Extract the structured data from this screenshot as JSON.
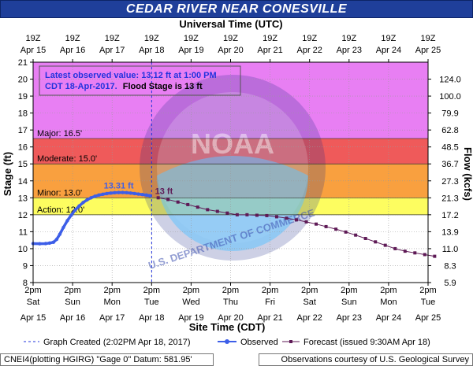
{
  "title": "CEDAR RIVER NEAR CONESVILLE",
  "top_axis_title": "Universal Time (UTC)",
  "bottom_axis_title": "Site Time (CDT)",
  "left_axis_title": "Stage (ft)",
  "right_axis_title": "Flow (kcfs)",
  "info_box": {
    "line1": "Latest observed value: 13.12 ft at 1:00 PM",
    "line2_prefix": "CDT 18-Apr-2017.",
    "line2_suffix": "Flood Stage is 13 ft"
  },
  "legend": {
    "graph_created": "Graph Created (2:02PM Apr 18, 2017)",
    "observed": "Observed",
    "forecast": "Forecast (issued 9:30AM Apr 18)"
  },
  "footer": {
    "left": "CNEI4(plotting HGIRG) \"Gage 0\" Datum: 581.95'",
    "right": "Observations courtesy of U.S. Geological Survey"
  },
  "colors": {
    "major": "#e87ff3",
    "major_minor_band": "#ef5a5a",
    "moderate": "#f9a03f",
    "minor": "#fdfd60",
    "action_below": "#ffffff",
    "observed": "#3d5ee8",
    "forecast": "#5e1a56",
    "title_bar": "#1f3f9a"
  },
  "chart_data": {
    "type": "line",
    "title": "CEDAR RIVER NEAR CONESVILLE",
    "xlabel": "Site Time (CDT)",
    "ylabel": "Stage (ft)",
    "y2label": "Flow (kcfs)",
    "ylim": [
      8,
      21
    ],
    "xlim_days": [
      15.5833,
      25.5833
    ],
    "y_ticks": [
      8,
      9,
      10,
      11,
      12,
      13,
      14,
      15,
      16,
      17,
      18,
      19,
      20,
      21
    ],
    "flow_ticks": [
      {
        "stage": 9,
        "label": "8.3"
      },
      {
        "stage": 10,
        "label": "11.0"
      },
      {
        "stage": 11,
        "label": "13.9"
      },
      {
        "stage": 12,
        "label": "17.2"
      },
      {
        "stage": 13,
        "label": "21.3"
      },
      {
        "stage": 14,
        "label": "27.3"
      },
      {
        "stage": 15,
        "label": "36.7"
      },
      {
        "stage": 16,
        "label": "48.5"
      },
      {
        "stage": 17,
        "label": "62.8"
      },
      {
        "stage": 18,
        "label": "79.9"
      },
      {
        "stage": 19,
        "label": "100.0"
      },
      {
        "stage": 20,
        "label": "124.0"
      },
      {
        "stage": 8,
        "label": "5.9"
      }
    ],
    "bottom_ticks": [
      {
        "time": "2pm",
        "day": "Sat",
        "date": "Apr 15"
      },
      {
        "time": "2pm",
        "day": "Sun",
        "date": "Apr 16"
      },
      {
        "time": "2pm",
        "day": "Mon",
        "date": "Apr 17"
      },
      {
        "time": "2pm",
        "day": "Tue",
        "date": "Apr 18"
      },
      {
        "time": "2pm",
        "day": "Wed",
        "date": "Apr 19"
      },
      {
        "time": "2pm",
        "day": "Thu",
        "date": "Apr 20"
      },
      {
        "time": "2pm",
        "day": "Fri",
        "date": "Apr 21"
      },
      {
        "time": "2pm",
        "day": "Sat",
        "date": "Apr 22"
      },
      {
        "time": "2pm",
        "day": "Sun",
        "date": "Apr 23"
      },
      {
        "time": "2pm",
        "day": "Mon",
        "date": "Apr 24"
      },
      {
        "time": "2pm",
        "day": "Tue",
        "date": "Apr 25"
      }
    ],
    "top_ticks": [
      {
        "time": "19Z",
        "date": "Apr 15"
      },
      {
        "time": "19Z",
        "date": "Apr 16"
      },
      {
        "time": "19Z",
        "date": "Apr 17"
      },
      {
        "time": "19Z",
        "date": "Apr 18"
      },
      {
        "time": "19Z",
        "date": "Apr 19"
      },
      {
        "time": "19Z",
        "date": "Apr 20"
      },
      {
        "time": "19Z",
        "date": "Apr 21"
      },
      {
        "time": "19Z",
        "date": "Apr 22"
      },
      {
        "time": "19Z",
        "date": "Apr 23"
      },
      {
        "time": "19Z",
        "date": "Apr 24"
      },
      {
        "time": "19Z",
        "date": "Apr 25"
      }
    ],
    "flood_categories": [
      {
        "name": "Major",
        "label": "Major: 16.5'",
        "stage": 16.5
      },
      {
        "name": "Moderate",
        "label": "Moderate: 15.0'",
        "stage": 15.0
      },
      {
        "name": "Minor",
        "label": "Minor: 13.0'",
        "stage": 13.0
      },
      {
        "name": "Action",
        "label": "Action: 12.0'",
        "stage": 12.0
      }
    ],
    "graph_created_day": 18.5847,
    "observed_peak_label": "13.31 ft",
    "forecast_start_label": "13 ft",
    "series": [
      {
        "name": "Observed",
        "points": [
          [
            15.5833,
            10.3
          ],
          [
            15.75,
            10.29
          ],
          [
            15.9,
            10.3
          ],
          [
            16.0,
            10.33
          ],
          [
            16.1,
            10.38
          ],
          [
            16.18,
            10.55
          ],
          [
            16.26,
            10.85
          ],
          [
            16.35,
            11.25
          ],
          [
            16.45,
            11.65
          ],
          [
            16.55,
            11.98
          ],
          [
            16.65,
            12.28
          ],
          [
            16.75,
            12.52
          ],
          [
            16.85,
            12.72
          ],
          [
            16.95,
            12.88
          ],
          [
            17.05,
            13.0
          ],
          [
            17.15,
            13.09
          ],
          [
            17.25,
            13.16
          ],
          [
            17.35,
            13.21
          ],
          [
            17.45,
            13.25
          ],
          [
            17.55,
            13.28
          ],
          [
            17.65,
            13.3
          ],
          [
            17.75,
            13.31
          ],
          [
            17.85,
            13.31
          ],
          [
            17.95,
            13.3
          ],
          [
            18.05,
            13.28
          ],
          [
            18.15,
            13.25
          ],
          [
            18.25,
            13.22
          ],
          [
            18.35,
            13.19
          ],
          [
            18.45,
            13.16
          ],
          [
            18.54,
            13.12
          ]
        ]
      },
      {
        "name": "Forecast (issued 9:30AM Apr 18)",
        "points": [
          [
            18.75,
            13.0
          ],
          [
            19.0,
            12.9
          ],
          [
            19.25,
            12.75
          ],
          [
            19.5,
            12.6
          ],
          [
            19.75,
            12.45
          ],
          [
            20.0,
            12.3
          ],
          [
            20.25,
            12.2
          ],
          [
            20.5,
            12.1
          ],
          [
            20.75,
            12.0
          ],
          [
            21.0,
            12.0
          ],
          [
            21.25,
            11.97
          ],
          [
            21.5,
            11.95
          ],
          [
            21.75,
            11.88
          ],
          [
            22.0,
            11.8
          ],
          [
            22.25,
            11.7
          ],
          [
            22.5,
            11.58
          ],
          [
            22.75,
            11.45
          ],
          [
            23.0,
            11.3
          ],
          [
            23.25,
            11.15
          ],
          [
            23.5,
            10.98
          ],
          [
            23.75,
            10.8
          ],
          [
            24.0,
            10.6
          ],
          [
            24.25,
            10.4
          ],
          [
            24.5,
            10.2
          ],
          [
            24.75,
            10.0
          ],
          [
            25.0,
            9.85
          ],
          [
            25.25,
            9.75
          ],
          [
            25.5,
            9.65
          ],
          [
            25.75,
            9.55
          ],
          [
            26.0,
            9.45
          ],
          [
            26.25,
            9.3
          ],
          [
            26.5,
            9.2
          ],
          [
            26.75,
            9.12
          ]
        ]
      }
    ]
  }
}
